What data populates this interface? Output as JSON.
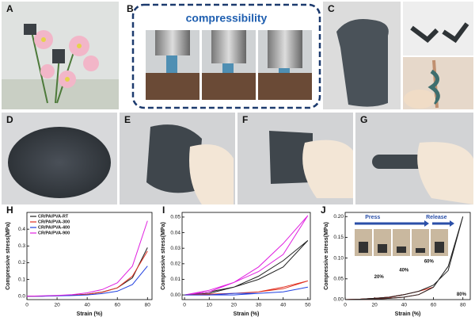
{
  "panels": {
    "A": "A",
    "B": "B",
    "C": "C",
    "D": "D",
    "E": "E",
    "F": "F",
    "G": "G",
    "H": "H",
    "I": "I",
    "J": "J"
  },
  "compressibility_label": "compressibility",
  "chart_data": [
    {
      "type": "line",
      "xlabel": "Strain (%)",
      "ylabel": "Compressive stress(MPa)",
      "legend": "upper left",
      "x": [
        0,
        10,
        20,
        30,
        40,
        50,
        60,
        70,
        80
      ],
      "xlim": [
        0,
        83
      ],
      "xticks": [
        0,
        20,
        40,
        60,
        80
      ],
      "ylim": [
        -0.02,
        0.5
      ],
      "yticks": [
        {
          "value": 0,
          "label": "0.0"
        },
        0.1,
        0.2,
        0.3,
        0.4
      ],
      "series": [
        {
          "name": "CR/PA/PVA-RT",
          "color": "#222222",
          "values": [
            0,
            0.001,
            0.003,
            0.006,
            0.012,
            0.025,
            0.05,
            0.11,
            0.29
          ]
        },
        {
          "name": "CR/PA/PVA-300",
          "color": "#e03020",
          "values": [
            0,
            0.001,
            0.003,
            0.006,
            0.012,
            0.024,
            0.05,
            0.12,
            0.27
          ]
        },
        {
          "name": "CR/PA/PVA-400",
          "color": "#2040e0",
          "values": [
            0,
            0,
            0.002,
            0.004,
            0.008,
            0.016,
            0.03,
            0.07,
            0.18
          ]
        },
        {
          "name": "CR/PA/PVA-900",
          "color": "#e020e0",
          "values": [
            0,
            0.002,
            0.005,
            0.01,
            0.02,
            0.04,
            0.08,
            0.18,
            0.45
          ]
        }
      ]
    },
    {
      "type": "line",
      "xlabel": "Strain (%)",
      "ylabel": "Compressive stress(MPa)",
      "x": [
        0,
        10,
        20,
        30,
        40,
        50,
        40,
        30,
        20,
        10,
        0
      ],
      "xlim": [
        -1,
        51
      ],
      "xticks": [
        0,
        10,
        20,
        30,
        40,
        50
      ],
      "ylim": [
        -0.003,
        0.053
      ],
      "yticks": [
        {
          "value": 0,
          "label": "0.00"
        },
        0.01,
        0.02,
        0.03,
        0.04,
        0.05
      ],
      "series": [
        {
          "color": "#222222",
          "values": [
            0,
            0.002,
            0.005,
            0.01,
            0.018,
            0.035,
            0.022,
            0.012,
            0.005,
            0.001,
            0
          ]
        },
        {
          "color": "#e020e0",
          "values": [
            0,
            0.003,
            0.008,
            0.015,
            0.026,
            0.051,
            0.033,
            0.018,
            0.008,
            0.002,
            0
          ]
        },
        {
          "color": "#e03020",
          "values": [
            0,
            0.0005,
            0.001,
            0.002,
            0.004,
            0.009,
            0.005,
            0.002,
            0.001,
            0,
            0
          ]
        },
        {
          "color": "#2040e0",
          "values": [
            0,
            0,
            0.001,
            0.001,
            0.002,
            0.005,
            0.002,
            0.001,
            0,
            0,
            0
          ]
        }
      ]
    },
    {
      "type": "line",
      "xlabel": "Strain (%)",
      "ylabel": "Compressive stress(MPa)",
      "xlim": [
        0,
        85
      ],
      "xticks": [
        0,
        20,
        40,
        60,
        80
      ],
      "ylim": [
        0,
        0.21
      ],
      "yticks": [
        {
          "value": 0,
          "label": "0.00"
        },
        0.05,
        {
          "value": 0.1,
          "label": "0.10"
        },
        0.15,
        {
          "value": 0.2,
          "label": "0.20"
        }
      ],
      "annotations": [
        "20%",
        "40%",
        "60%",
        "80%",
        "Press",
        "Release"
      ],
      "series": [
        {
          "color": "#8a2020",
          "x": [
            0,
            10,
            20,
            10,
            0
          ],
          "values": [
            0,
            0.001,
            0.003,
            0.001,
            0
          ]
        },
        {
          "color": "#c03030",
          "x": [
            0,
            10,
            20,
            30,
            40,
            30,
            20,
            10,
            0
          ],
          "values": [
            0,
            0.001,
            0.003,
            0.006,
            0.012,
            0.005,
            0.002,
            0.001,
            0
          ]
        },
        {
          "color": "#e03020",
          "x": [
            0,
            10,
            20,
            30,
            40,
            50,
            60,
            50,
            40,
            30,
            20,
            10,
            0
          ],
          "values": [
            0,
            0.001,
            0.003,
            0.006,
            0.012,
            0.02,
            0.03,
            0.012,
            0.006,
            0.003,
            0.001,
            0,
            0
          ]
        },
        {
          "color": "#222222",
          "x": [
            0,
            10,
            20,
            30,
            40,
            50,
            60,
            70,
            80,
            70,
            60,
            50,
            40,
            30,
            20,
            10,
            0
          ],
          "values": [
            0,
            0.001,
            0.003,
            0.006,
            0.012,
            0.02,
            0.035,
            0.07,
            0.2,
            0.08,
            0.03,
            0.012,
            0.006,
            0.003,
            0.001,
            0,
            0
          ]
        }
      ]
    }
  ]
}
